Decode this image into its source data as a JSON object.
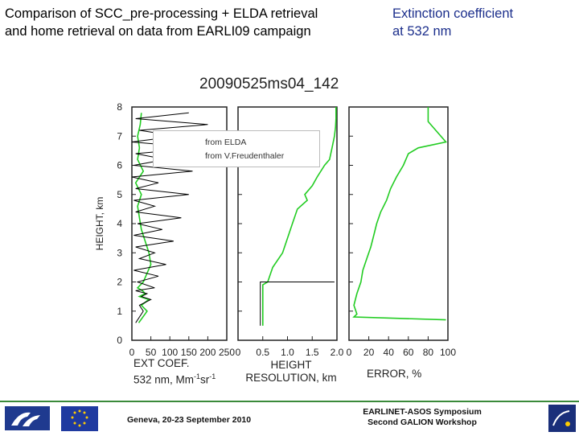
{
  "header": {
    "title_line1": "Comparison of SCC_pre-processing + ELDA retrieval",
    "title_line2": "and home retrieval on data from EARLI09 campaign",
    "subtitle_line1": "Extinction coefficient",
    "subtitle_line2": "at 532 nm"
  },
  "plot_title": "20090525ms04_142",
  "legend": {
    "item1": "from ELDA",
    "item2": "from V.Freudenthaler"
  },
  "footer": {
    "left": "Geneva, 20-23 September 2010",
    "right_line1": "EARLINET-ASOS Symposium",
    "right_line2": "Second GALION Workshop"
  },
  "colors": {
    "elda": "#22cc22",
    "home": "#000000",
    "title_right": "#1c2f8c"
  },
  "chart_data": [
    {
      "type": "line",
      "ylabel": "HEIGHT, km",
      "xlabel_line1": "EXT COEF.",
      "xlabel_line2_prefix": "532 nm, Mm",
      "xlabel_sup1": "-1",
      "xlabel_mid": "sr",
      "xlabel_sup2": "-1",
      "xticks": [
        "0",
        "50",
        "100",
        "150",
        "200",
        "250"
      ],
      "yticks": [
        "0",
        "1",
        "2",
        "3",
        "4",
        "5",
        "6",
        "7",
        "8"
      ],
      "xlim": [
        0,
        250
      ],
      "ylim": [
        0,
        8
      ],
      "series": [
        {
          "name": "from ELDA",
          "y": [
            0.6,
            1.0,
            1.2,
            1.4,
            1.5,
            1.6,
            1.7,
            1.8,
            2.0,
            2.3,
            2.6,
            3.0,
            3.4,
            3.8,
            4.2,
            4.6,
            5.0,
            5.4,
            5.8,
            6.2,
            6.6,
            7.0,
            7.4,
            7.8
          ],
          "x": [
            18,
            40,
            25,
            45,
            20,
            35,
            28,
            15,
            30,
            40,
            50,
            45,
            35,
            25,
            20,
            15,
            25,
            10,
            30,
            15,
            20,
            15,
            22,
            25
          ]
        },
        {
          "name": "from V.Freudenthaler",
          "y": [
            0.6,
            1.0,
            1.2,
            1.4,
            1.5,
            1.6,
            1.7,
            1.8,
            2.0,
            2.2,
            2.4,
            2.6,
            2.8,
            3.0,
            3.2,
            3.4,
            3.6,
            3.8,
            4.0,
            4.2,
            4.4,
            4.6,
            4.8,
            5.0,
            5.2,
            5.4,
            5.6,
            5.8,
            6.0,
            6.2,
            6.4,
            6.6,
            6.8,
            7.0,
            7.2,
            7.4,
            7.6,
            7.8
          ],
          "x": [
            10,
            30,
            20,
            50,
            25,
            40,
            10,
            60,
            15,
            70,
            5,
            90,
            20,
            60,
            10,
            110,
            5,
            80,
            15,
            130,
            10,
            60,
            5,
            150,
            10,
            70,
            0,
            160,
            5,
            90,
            10,
            180,
            0,
            120,
            20,
            200,
            10,
            150
          ]
        }
      ]
    },
    {
      "type": "line",
      "xlabel_line1": "HEIGHT",
      "xlabel_line2": "RESOLUTION, km",
      "xticks": [
        "0",
        "0.5",
        "1.0",
        "1.5",
        "2.0"
      ],
      "xlim": [
        0,
        2.0
      ],
      "ylim": [
        0,
        8
      ],
      "series": [
        {
          "name": "from ELDA",
          "y": [
            0.5,
            1.0,
            1.5,
            1.9,
            2.0,
            2.5,
            3.0,
            3.5,
            4.0,
            4.5,
            4.8,
            5.0,
            5.3,
            5.6,
            6.0,
            6.2,
            6.6,
            7.0,
            7.3,
            7.6,
            8.0
          ],
          "x": [
            0.5,
            0.5,
            0.5,
            0.5,
            0.6,
            0.7,
            0.9,
            1.0,
            1.1,
            1.2,
            1.4,
            1.35,
            1.5,
            1.6,
            1.75,
            1.85,
            1.9,
            1.95,
            1.97,
            1.98,
            1.98
          ]
        },
        {
          "name": "from V.Freudenthaler",
          "y": [
            0.5,
            2.0,
            2.0
          ],
          "x": [
            0.45,
            0.45,
            1.95
          ]
        }
      ]
    },
    {
      "type": "line",
      "xlabel": "ERROR, %",
      "xticks": [
        "0",
        "20",
        "40",
        "60",
        "80",
        "100"
      ],
      "xlim": [
        0,
        100
      ],
      "ylim": [
        0,
        8
      ],
      "series": [
        {
          "name": "from ELDA",
          "y": [
            0.7,
            0.8,
            0.9,
            1.2,
            1.6,
            2.0,
            2.4,
            2.8,
            3.2,
            3.6,
            4.0,
            4.4,
            4.8,
            5.2,
            5.6,
            6.0,
            6.4,
            6.6,
            6.8,
            7.5,
            8.0
          ],
          "x": [
            98,
            5,
            8,
            5,
            8,
            12,
            14,
            18,
            22,
            25,
            28,
            32,
            38,
            42,
            48,
            55,
            60,
            70,
            98,
            80,
            80
          ]
        }
      ]
    }
  ]
}
